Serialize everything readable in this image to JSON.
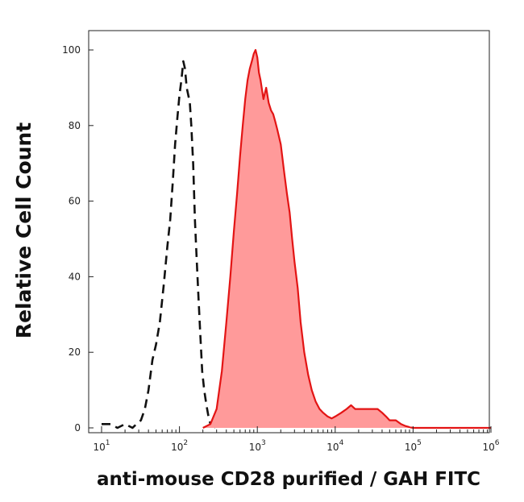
{
  "chart_data": {
    "type": "area",
    "title": "",
    "xlabel": "anti-mouse CD28 purified / GAH FITC",
    "ylabel": "Relative Cell Count",
    "xscale": "log",
    "xlim": [
      10,
      1000000
    ],
    "ylim": [
      0,
      100
    ],
    "grid": false,
    "y_ticks": [
      0,
      20,
      40,
      60,
      80,
      100
    ],
    "x_ticks": [
      {
        "value": 10,
        "base": "10",
        "exp": "1"
      },
      {
        "value": 100,
        "base": "10",
        "exp": "2"
      },
      {
        "value": 1000,
        "base": "10",
        "exp": "3"
      },
      {
        "value": 10000,
        "base": "10",
        "exp": "4"
      },
      {
        "value": 100000,
        "base": "10",
        "exp": "5"
      },
      {
        "value": 1000000,
        "base": "10",
        "exp": "6"
      }
    ],
    "series": [
      {
        "style": "dashed",
        "color": "#111111",
        "x": [
          10,
          13,
          16,
          20,
          25,
          28,
          32,
          36,
          40,
          45,
          50,
          56,
          63,
          70,
          76,
          82,
          88,
          94,
          100,
          106,
          112,
          118,
          124,
          130,
          136,
          142,
          150,
          158,
          166,
          175,
          185,
          196,
          208,
          222,
          236,
          250,
          270,
          300
        ],
        "y": [
          1,
          1,
          0,
          1,
          0,
          1,
          2,
          5,
          10,
          18,
          22,
          28,
          38,
          48,
          55,
          65,
          75,
          82,
          88,
          92,
          97,
          95,
          90,
          88,
          86,
          80,
          70,
          55,
          45,
          35,
          25,
          15,
          10,
          6,
          3,
          1,
          0.5,
          0
        ]
      },
      {
        "style": "filled",
        "color": "#e31414",
        "fill": "#ff9a9a",
        "x": [
          200,
          250,
          300,
          350,
          400,
          450,
          500,
          550,
          600,
          650,
          700,
          750,
          800,
          850,
          900,
          950,
          1000,
          1050,
          1100,
          1200,
          1300,
          1400,
          1500,
          1600,
          1700,
          1800,
          2000,
          2200,
          2400,
          2600,
          2800,
          3000,
          3300,
          3600,
          4000,
          4500,
          5000,
          5600,
          6300,
          7000,
          8000,
          9000,
          10000,
          12000,
          14000,
          16000,
          18000,
          20000,
          23000,
          26000,
          30000,
          35000,
          40000,
          45000,
          50000,
          60000,
          70000,
          80000,
          90000,
          100000,
          200000,
          500000,
          1000000
        ],
        "y": [
          0,
          1,
          5,
          15,
          28,
          40,
          52,
          62,
          72,
          80,
          87,
          92,
          95,
          97,
          99,
          100,
          98,
          94,
          92,
          87,
          90,
          86,
          84,
          83,
          81,
          79,
          75,
          68,
          62,
          57,
          50,
          44,
          37,
          28,
          20,
          14,
          10,
          7,
          5,
          4,
          3,
          2.5,
          3,
          4,
          5,
          6,
          5,
          5,
          5,
          5,
          5,
          5,
          4,
          3,
          2,
          2,
          1,
          0.5,
          0.2,
          0,
          0,
          0,
          0
        ]
      }
    ]
  }
}
